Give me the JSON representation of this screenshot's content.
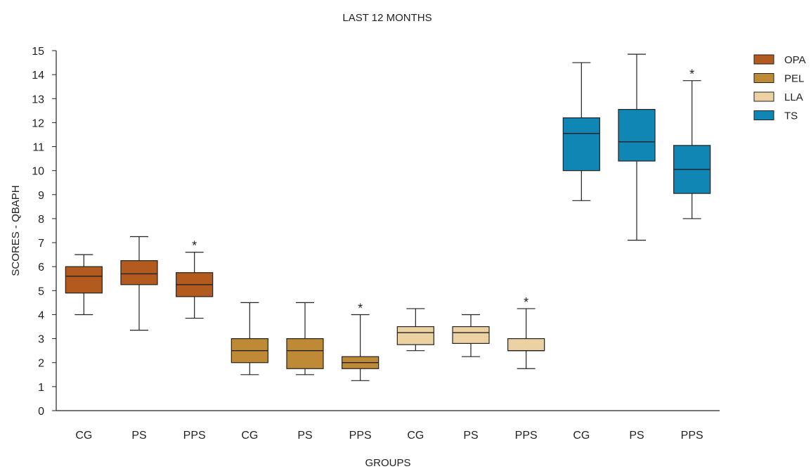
{
  "chart_data": {
    "type": "box",
    "title": "LAST 12 MONTHS",
    "xlabel": "GROUPS",
    "ylabel": "SCORES - QBAPH",
    "ylim": [
      0,
      15
    ],
    "yticks": [
      0,
      1,
      2,
      3,
      4,
      5,
      6,
      7,
      8,
      9,
      10,
      11,
      12,
      13,
      14,
      15
    ],
    "categories": [
      "CG",
      "PS",
      "PPS",
      "CG",
      "PS",
      "PPS",
      "CG",
      "PS",
      "PPS",
      "CG",
      "PS",
      "PPS"
    ],
    "legend_position": "top-right",
    "grid": false,
    "series": [
      {
        "name": "OPA",
        "color": "#b35a1f",
        "boxes": [
          {
            "group": "CG",
            "min": 4.0,
            "q1": 4.9,
            "median": 5.6,
            "q3": 6.0,
            "max": 6.5,
            "marker": ""
          },
          {
            "group": "PS",
            "min": 3.35,
            "q1": 5.25,
            "median": 5.7,
            "q3": 6.25,
            "max": 7.25,
            "marker": ""
          },
          {
            "group": "PPS",
            "min": 3.85,
            "q1": 4.75,
            "median": 5.25,
            "q3": 5.75,
            "max": 6.6,
            "marker": "*"
          }
        ]
      },
      {
        "name": "PEL",
        "color": "#bf8a35",
        "boxes": [
          {
            "group": "CG",
            "min": 1.5,
            "q1": 2.0,
            "median": 2.5,
            "q3": 3.0,
            "max": 4.5,
            "marker": ""
          },
          {
            "group": "PS",
            "min": 1.5,
            "q1": 1.75,
            "median": 2.5,
            "q3": 3.0,
            "max": 4.5,
            "marker": ""
          },
          {
            "group": "PPS",
            "min": 1.25,
            "q1": 1.75,
            "median": 2.0,
            "q3": 2.25,
            "max": 4.0,
            "marker": "*"
          }
        ]
      },
      {
        "name": "LLA",
        "color": "#ecd2a3",
        "boxes": [
          {
            "group": "CG",
            "min": 2.5,
            "q1": 2.75,
            "median": 3.25,
            "q3": 3.5,
            "max": 4.25,
            "marker": ""
          },
          {
            "group": "PS",
            "min": 2.25,
            "q1": 2.8,
            "median": 3.25,
            "q3": 3.5,
            "max": 4.0,
            "marker": ""
          },
          {
            "group": "PPS",
            "min": 1.75,
            "q1": 2.5,
            "median": 2.5,
            "q3": 3.0,
            "max": 4.25,
            "marker": "*"
          }
        ]
      },
      {
        "name": "TS",
        "color": "#0f86b4",
        "boxes": [
          {
            "group": "CG",
            "min": 8.75,
            "q1": 10.0,
            "median": 11.55,
            "q3": 12.2,
            "max": 14.5,
            "marker": ""
          },
          {
            "group": "PS",
            "min": 7.1,
            "q1": 10.4,
            "median": 11.2,
            "q3": 12.55,
            "max": 14.85,
            "marker": ""
          },
          {
            "group": "PPS",
            "min": 8.0,
            "q1": 9.05,
            "median": 10.05,
            "q3": 11.05,
            "max": 13.75,
            "marker": "*"
          }
        ]
      }
    ]
  }
}
